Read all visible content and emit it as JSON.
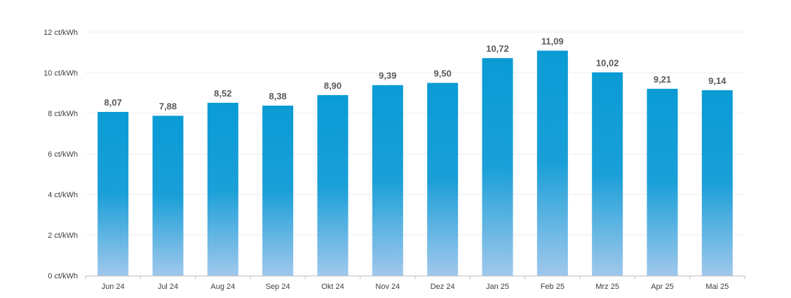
{
  "chart_data": {
    "type": "bar",
    "title": "",
    "xlabel": "",
    "ylabel": "",
    "categories": [
      "Jun 24",
      "Jul 24",
      "Aug 24",
      "Sep 24",
      "Okt 24",
      "Nov 24",
      "Dez 24",
      "Jan 25",
      "Feb 25",
      "Mrz 25",
      "Apr 25",
      "Mai 25"
    ],
    "values": [
      8.07,
      7.88,
      8.52,
      8.38,
      8.9,
      9.39,
      9.5,
      10.72,
      11.09,
      10.02,
      9.21,
      9.14
    ],
    "value_labels": [
      "8,07",
      "7,88",
      "8,52",
      "8,38",
      "8,90",
      "9,39",
      "9,50",
      "10,72",
      "11,09",
      "10,02",
      "9,21",
      "9,14"
    ],
    "ylim": [
      0,
      12
    ],
    "y_ticks": [
      0,
      2,
      4,
      6,
      8,
      10,
      12
    ],
    "y_tick_labels": [
      "0 ct/kWh",
      "2 ct/kWh",
      "4 ct/kWh",
      "6 ct/kWh",
      "8 ct/kWh",
      "10 ct/kWh",
      "12 ct/kWh"
    ],
    "grid": true,
    "legend": "none",
    "colors": {
      "bar_top": "#0a9bd5",
      "bar_mid": "#1a9fd8",
      "bar_bottom": "#a0c8ec",
      "data_label": "#595959",
      "axis_label": "#404040"
    }
  }
}
